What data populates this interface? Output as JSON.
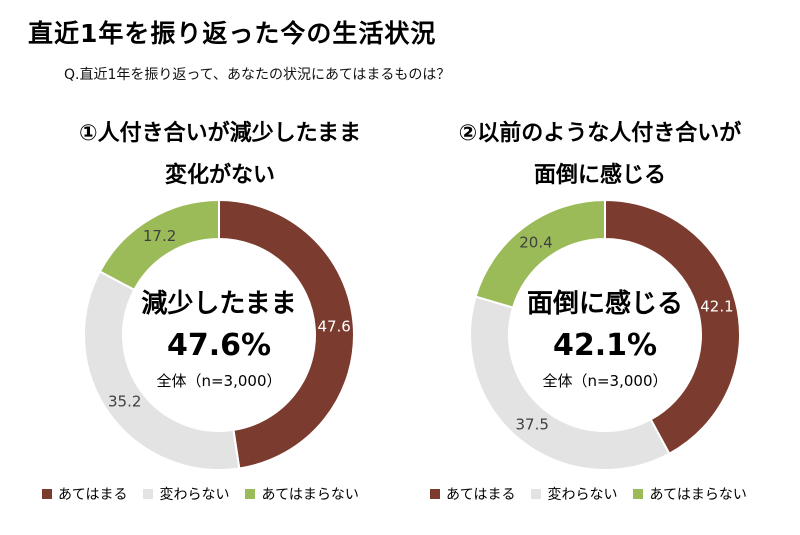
{
  "title": "直近1年を振り返った今の生活状況",
  "question": "Q.直近1年を振り返って、あなたの状況にあてはまるものは？",
  "colors": {
    "applies": "#7b3b2e",
    "no_change": "#e3e3e3",
    "not_applies": "#9bbb59"
  },
  "legend": [
    "あてはまる",
    "変わらない",
    "あてはまらない"
  ],
  "chart_data": [
    {
      "type": "pie",
      "donut": true,
      "title_lines": [
        "①人付き合いが減少したまま",
        "変化がない"
      ],
      "categories": [
        "あてはまる",
        "変わらない",
        "あてはまらない"
      ],
      "values": [
        47.6,
        35.2,
        17.2
      ],
      "value_labels": [
        "47.6",
        "35.2",
        "17.2"
      ],
      "center_text": "減少したまま",
      "center_value": "47.6%",
      "center_base": "全体（n=3,000）",
      "legend_position": "bottom"
    },
    {
      "type": "pie",
      "donut": true,
      "title_lines": [
        "②以前のような人付き合いが",
        "面倒に感じる"
      ],
      "categories": [
        "あてはまる",
        "変わらない",
        "あてはまらない"
      ],
      "values": [
        42.1,
        37.5,
        20.4
      ],
      "value_labels": [
        "42.1",
        "37.5",
        "20.4"
      ],
      "center_text": "面倒に感じる",
      "center_value": "42.1%",
      "center_base": "全体（n=3,000）",
      "legend_position": "bottom"
    }
  ]
}
